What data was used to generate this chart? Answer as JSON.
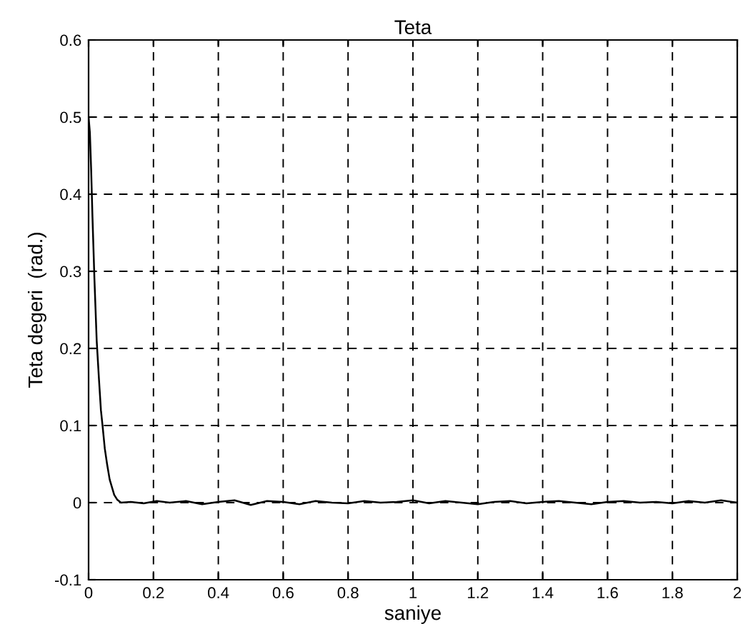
{
  "chart_data": {
    "type": "line",
    "title": "Teta",
    "xlabel": "saniye",
    "ylabel": "Teta degeri  (rad.)",
    "series": [
      {
        "color": "#000000",
        "x": [
          0,
          0.004,
          0.008,
          0.012,
          0.018,
          0.025,
          0.032,
          0.038,
          0.043,
          0.05,
          0.057,
          0.065,
          0.072,
          0.079,
          0.088,
          0.1,
          0.13,
          0.17,
          0.21,
          0.25,
          0.3,
          0.35,
          0.4,
          0.45,
          0.5,
          0.55,
          0.6,
          0.65,
          0.7,
          0.75,
          0.8,
          0.85,
          0.9,
          0.95,
          1.0,
          1.05,
          1.1,
          1.15,
          1.2,
          1.25,
          1.3,
          1.35,
          1.4,
          1.45,
          1.5,
          1.55,
          1.6,
          1.65,
          1.7,
          1.75,
          1.8,
          1.85,
          1.9,
          1.95,
          2.0
        ],
        "values": [
          0.5,
          0.48,
          0.43,
          0.37,
          0.29,
          0.21,
          0.16,
          0.12,
          0.1,
          0.07,
          0.05,
          0.03,
          0.02,
          0.01,
          0.004,
          0,
          0.001,
          -0.001,
          0.002,
          0,
          0.002,
          -0.002,
          0.001,
          0.003,
          -0.003,
          0.002,
          0.001,
          -0.002,
          0.002,
          0,
          -0.001,
          0.002,
          0,
          0.001,
          0.003,
          -0.001,
          0.002,
          0,
          -0.002,
          0.001,
          0.002,
          -0.001,
          0.001,
          0.002,
          0,
          -0.002,
          0.001,
          0.002,
          0,
          0.001,
          -0.001,
          0.002,
          0,
          0.003,
          0
        ]
      }
    ],
    "xlim": [
      0,
      2
    ],
    "xticks": [
      0,
      0.2,
      0.4,
      0.6,
      0.8,
      1,
      1.2,
      1.4,
      1.6,
      1.8,
      2
    ],
    "ylim": [
      -0.1,
      0.6
    ],
    "yticks": [
      -0.1,
      0,
      0.1,
      0.2,
      0.3,
      0.4,
      0.5,
      0.6
    ],
    "grid": true,
    "line_style": "solid"
  }
}
